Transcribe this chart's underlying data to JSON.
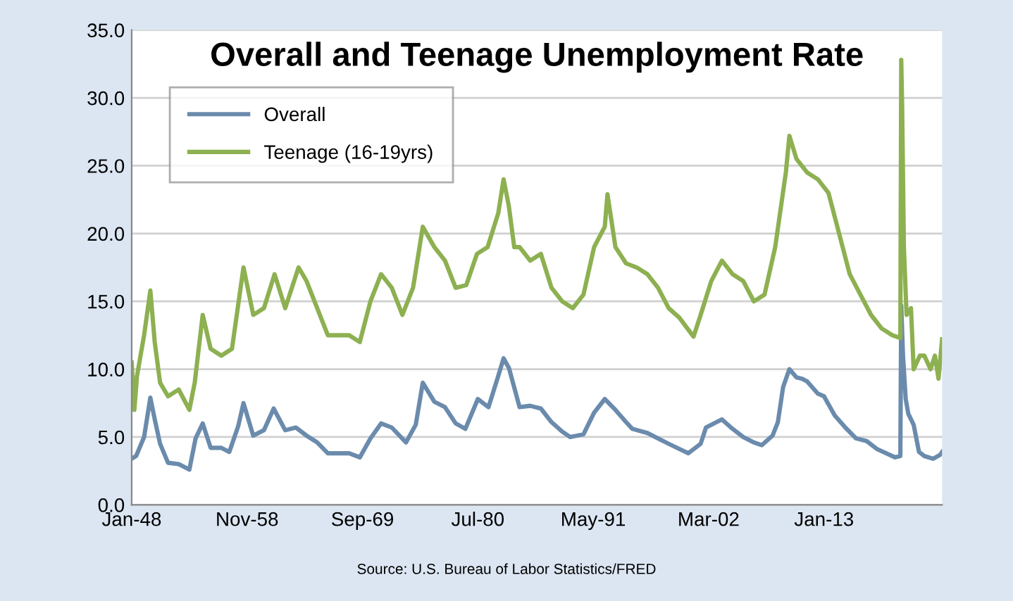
{
  "chart_data": {
    "type": "line",
    "title": "Overall and Teenage Unemployment Rate",
    "annotations": [
      "Source: U.S. Bureau of Labor Statistics/FRED"
    ],
    "series": [
      {
        "name": "Overall",
        "color": "#6b8bad",
        "x": [
          "1948-01",
          "1948-06",
          "1949-03",
          "1949-10",
          "1950-03",
          "1950-09",
          "1951-06",
          "1952-06",
          "1953-06",
          "1954-01",
          "1954-09",
          "1955-06",
          "1956-06",
          "1957-03",
          "1958-01",
          "1958-07",
          "1959-06",
          "1960-06",
          "1961-05",
          "1962-06",
          "1963-06",
          "1964-06",
          "1965-06",
          "1966-06",
          "1968-06",
          "1969-06",
          "1970-06",
          "1971-06",
          "1972-06",
          "1973-10",
          "1974-09",
          "1975-05",
          "1976-06",
          "1977-06",
          "1978-06",
          "1979-05",
          "1980-07",
          "1981-07",
          "1982-06",
          "1982-12",
          "1983-06",
          "1984-06",
          "1985-06",
          "1986-06",
          "1987-06",
          "1988-06",
          "1989-03",
          "1990-06",
          "1991-06",
          "1992-06",
          "1993-06",
          "1994-06",
          "1995-01",
          "1996-06",
          "1997-06",
          "1998-06",
          "2000-04",
          "2001-06",
          "2001-12",
          "2003-06",
          "2004-06",
          "2005-06",
          "2006-06",
          "2007-03",
          "2008-03",
          "2008-09",
          "2009-03",
          "2009-10",
          "2010-06",
          "2010-12",
          "2011-06",
          "2012-06",
          "2013-01",
          "2014-01",
          "2015-01",
          "2016-01",
          "2017-01",
          "2018-01",
          "2019-09",
          "2020-03",
          "2020-04",
          "2020-06",
          "2020-09",
          "2020-12",
          "2021-06",
          "2021-12",
          "2022-06",
          "2023-04",
          "2023-12",
          "2024-02"
        ],
        "values": [
          3.4,
          3.6,
          5.0,
          7.9,
          6.3,
          4.5,
          3.1,
          3.0,
          2.6,
          4.9,
          6.0,
          4.2,
          4.2,
          3.9,
          5.8,
          7.5,
          5.1,
          5.5,
          7.1,
          5.5,
          5.7,
          5.1,
          4.6,
          3.8,
          3.8,
          3.5,
          4.9,
          6.0,
          5.7,
          4.6,
          5.9,
          9.0,
          7.6,
          7.2,
          6.0,
          5.6,
          7.8,
          7.2,
          9.5,
          10.8,
          10.1,
          7.2,
          7.3,
          7.1,
          6.1,
          5.4,
          5.0,
          5.2,
          6.8,
          7.8,
          7.0,
          6.1,
          5.6,
          5.3,
          4.9,
          4.5,
          3.8,
          4.5,
          5.7,
          6.3,
          5.6,
          5.0,
          4.6,
          4.4,
          5.1,
          6.1,
          8.7,
          10.0,
          9.4,
          9.3,
          9.1,
          8.2,
          8.0,
          6.6,
          5.7,
          4.9,
          4.7,
          4.1,
          3.5,
          3.6,
          14.7,
          11.0,
          7.8,
          6.7,
          5.9,
          3.9,
          3.6,
          3.4,
          3.7,
          3.9
        ]
      },
      {
        "name": "Teenage (16-19yrs)",
        "color": "#8db051",
        "x": [
          "1948-01",
          "1948-04",
          "1948-07",
          "1949-03",
          "1949-10",
          "1950-03",
          "1950-09",
          "1951-06",
          "1952-06",
          "1953-06",
          "1953-12",
          "1954-09",
          "1955-06",
          "1956-06",
          "1957-06",
          "1958-07",
          "1959-06",
          "1960-06",
          "1961-06",
          "1962-06",
          "1963-09",
          "1964-06",
          "1965-06",
          "1966-06",
          "1967-06",
          "1968-06",
          "1969-06",
          "1970-06",
          "1971-06",
          "1972-06",
          "1973-06",
          "1974-06",
          "1975-05",
          "1976-06",
          "1977-06",
          "1978-06",
          "1979-06",
          "1980-06",
          "1981-06",
          "1982-06",
          "1982-12",
          "1983-06",
          "1983-12",
          "1984-06",
          "1985-06",
          "1986-06",
          "1987-06",
          "1988-06",
          "1989-06",
          "1990-06",
          "1991-06",
          "1992-06",
          "1992-09",
          "1993-06",
          "1994-06",
          "1995-06",
          "1996-06",
          "1997-06",
          "1998-06",
          "1999-06",
          "2000-10",
          "2001-06",
          "2002-06",
          "2003-06",
          "2004-06",
          "2005-06",
          "2006-06",
          "2007-06",
          "2008-06",
          "2009-06",
          "2009-10",
          "2010-06",
          "2011-06",
          "2012-06",
          "2013-06",
          "2014-06",
          "2015-06",
          "2016-06",
          "2017-06",
          "2018-06",
          "2019-06",
          "2020-03",
          "2020-04",
          "2020-05",
          "2020-07",
          "2020-10",
          "2021-03",
          "2021-06",
          "2022-01",
          "2022-06",
          "2023-01",
          "2023-06",
          "2023-10",
          "2024-02"
        ],
        "values": [
          10.5,
          7.0,
          9.5,
          12.5,
          15.8,
          12.0,
          9.0,
          8.0,
          8.5,
          7.0,
          9.0,
          14.0,
          11.5,
          11.0,
          11.5,
          17.5,
          14.0,
          14.5,
          17.0,
          14.5,
          17.5,
          16.5,
          14.5,
          12.5,
          12.5,
          12.5,
          12.0,
          15.0,
          17.0,
          16.0,
          14.0,
          16.0,
          20.5,
          19.0,
          18.0,
          16.0,
          16.2,
          18.5,
          19.0,
          21.5,
          24.0,
          22.0,
          19.0,
          19.0,
          18.0,
          18.5,
          16.0,
          15.0,
          14.5,
          15.5,
          19.0,
          20.5,
          22.9,
          19.0,
          17.8,
          17.5,
          17.0,
          16.0,
          14.5,
          13.8,
          12.4,
          14.0,
          16.5,
          18.0,
          17.0,
          16.5,
          15.0,
          15.5,
          19.0,
          24.5,
          27.2,
          25.5,
          24.5,
          24.0,
          23.0,
          20.0,
          17.0,
          15.5,
          14.0,
          13.0,
          12.5,
          12.3,
          32.8,
          29.5,
          19.0,
          14.0,
          14.5,
          10.0,
          11.0,
          11.0,
          10.0,
          11.0,
          9.3,
          12.2
        ]
      }
    ],
    "xlim": [
      "1948-01",
      "2024-02"
    ],
    "xticks": [
      {
        "value": "1948-01",
        "label": "Jan-48"
      },
      {
        "value": "1958-11",
        "label": "Nov-58"
      },
      {
        "value": "1969-09",
        "label": "Sep-69"
      },
      {
        "value": "1980-07",
        "label": "Jul-80"
      },
      {
        "value": "1991-05",
        "label": "May-91"
      },
      {
        "value": "2002-03",
        "label": "Mar-02"
      },
      {
        "value": "2013-01",
        "label": "Jan-13"
      }
    ],
    "ylim": [
      0,
      35
    ],
    "yticks": [
      {
        "value": 0,
        "label": "0.0"
      },
      {
        "value": 5,
        "label": "5.0"
      },
      {
        "value": 10,
        "label": "10.0"
      },
      {
        "value": 15,
        "label": "15.0"
      },
      {
        "value": 20,
        "label": "20.0"
      },
      {
        "value": 25,
        "label": "25.0"
      },
      {
        "value": 30,
        "label": "30.0"
      },
      {
        "value": 35,
        "label": "35.0"
      }
    ],
    "grid": "y",
    "legend": "top left"
  }
}
